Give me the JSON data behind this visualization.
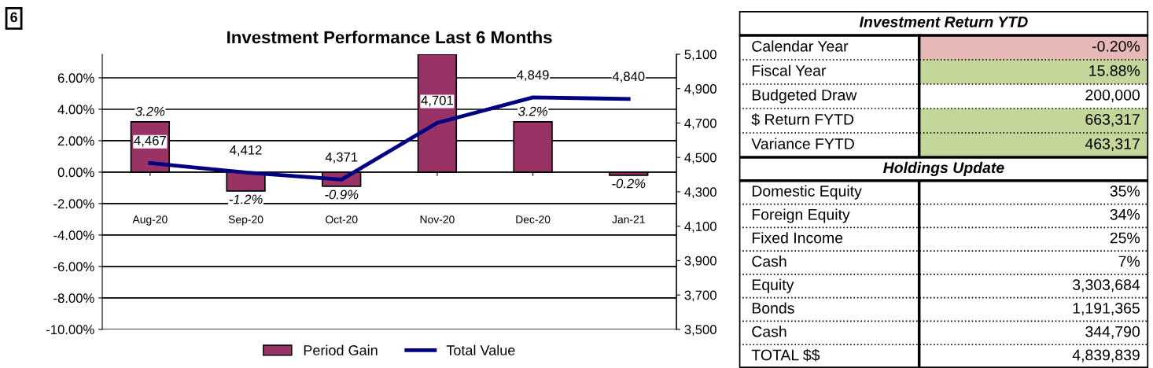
{
  "chart_data": [
    {
      "type": "bar",
      "title": "Investment Performance Last 6 Months",
      "annotations": [
        "6"
      ],
      "categories": [
        "Aug-20",
        "Sep-20",
        "Oct-20",
        "Nov-20",
        "Dec-20",
        "Jan-21"
      ],
      "series": [
        {
          "name": "Period Gain",
          "type": "bar",
          "color": "#993366",
          "values": [
            3.2,
            -1.2,
            -0.9,
            7.5,
            3.2,
            -0.2
          ],
          "value_labels": [
            "3.2%",
            "-1.2%",
            "-0.9%",
            null,
            "3.2%",
            "-0.2%"
          ]
        },
        {
          "name": "Total Value",
          "type": "line",
          "axis": "y2",
          "color": "#000080",
          "values": [
            4467,
            4412,
            4371,
            4701,
            4849,
            4840
          ],
          "value_labels": [
            "4,467",
            "4,412",
            "4,371",
            "4,701",
            "4,849",
            "4,840"
          ]
        }
      ],
      "ylim": [
        -10,
        7.5
      ],
      "yticks": [
        {
          "value": -10,
          "label": "-10.00%"
        },
        {
          "value": -8,
          "label": "-8.00%"
        },
        {
          "value": -6,
          "label": "-6.00%"
        },
        {
          "value": -4,
          "label": "-4.00%"
        },
        {
          "value": -2,
          "label": "-2.00%"
        },
        {
          "value": 0,
          "label": "0.00%"
        },
        {
          "value": 2,
          "label": "2.00%"
        },
        {
          "value": 4,
          "label": "4.00%"
        },
        {
          "value": 6,
          "label": "6.00%"
        }
      ],
      "y2lim": [
        3500,
        5100
      ],
      "y2ticks": [
        {
          "value": 3500,
          "label": "3,500"
        },
        {
          "value": 3700,
          "label": "3,700"
        },
        {
          "value": 3900,
          "label": "3,900"
        },
        {
          "value": 4100,
          "label": "4,100"
        },
        {
          "value": 4300,
          "label": "4,300"
        },
        {
          "value": 4500,
          "label": "4,500"
        },
        {
          "value": 4700,
          "label": "4,700"
        },
        {
          "value": 4900,
          "label": "4,900"
        },
        {
          "value": 5100,
          "label": "5,100"
        }
      ],
      "grid": "y",
      "legend": "bottom",
      "marker": "none"
    },
    {
      "type": "other",
      "title": "Investment Return YTD",
      "categories": [
        "Calendar Year",
        "Fiscal Year",
        "Budgeted Draw",
        "$ Return FYTD",
        "Variance FYTD"
      ],
      "value_labels": [
        "-0.20%",
        "15.88%",
        "200,000",
        "663,317",
        "463,317"
      ],
      "colors": [
        "#e6b8b7",
        "#c4d79b",
        "#ffffff",
        "#c4d79b",
        "#c4d79b"
      ]
    },
    {
      "type": "other",
      "title": "Holdings Update",
      "categories": [
        "Domestic Equity",
        "Foreign Equity",
        "Fixed Income",
        "Cash",
        "Equity",
        "Bonds",
        "Cash",
        "TOTAL $$"
      ],
      "value_labels": [
        "35%",
        "34%",
        "25%",
        "7%",
        "3,303,684",
        "1,191,365",
        "344,790",
        "4,839,839"
      ]
    }
  ]
}
